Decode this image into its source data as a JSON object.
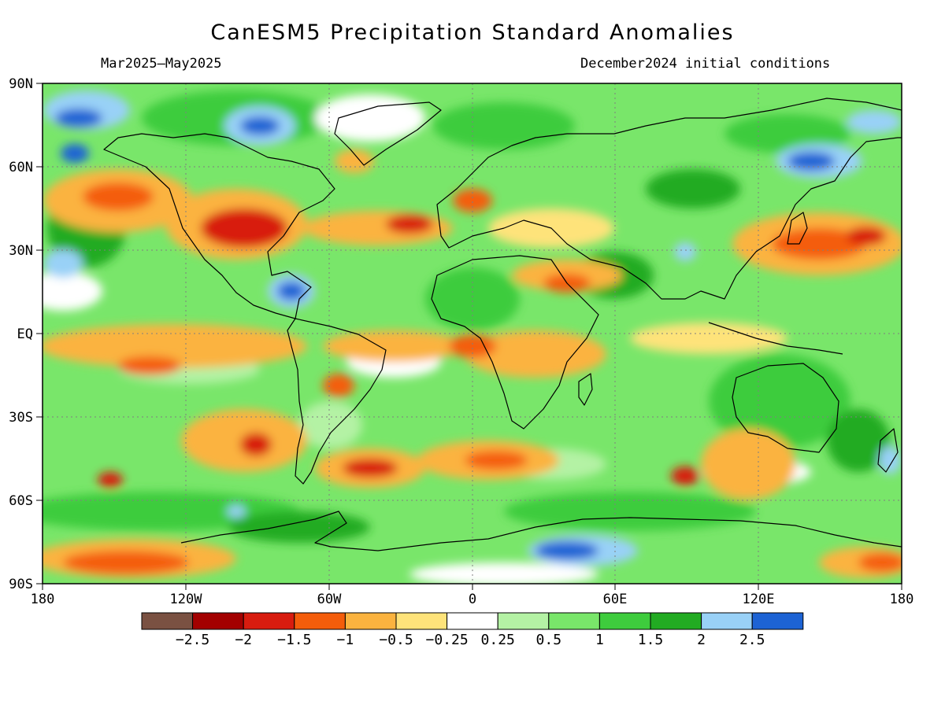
{
  "title": "CanESM5 Precipitation Standard Anomalies",
  "subtitle_left": "Mar2025–May2025",
  "subtitle_right": "December2024 initial conditions",
  "lat_labels": [
    "90N",
    "60N",
    "30N",
    "EQ",
    "30S",
    "60S",
    "90S"
  ],
  "lon_labels": [
    "180",
    "120W",
    "60W",
    "0",
    "60E",
    "120E",
    "180"
  ],
  "colorbar": {
    "colors": [
      "#7a5142",
      "#a30000",
      "#d81c0f",
      "#f45d0b",
      "#fbb33f",
      "#fee37a",
      "#ffffff",
      "#b4f2a4",
      "#79e66a",
      "#3ecc3d",
      "#22ab22",
      "#99d1f7",
      "#1d63d4"
    ],
    "labels": [
      "−2.5",
      "−2",
      "−1.5",
      "−1",
      "−0.5",
      "−0.25",
      "0.25",
      "0.5",
      "1",
      "1.5",
      "2",
      "2.5"
    ]
  },
  "palette": {
    "ocean_base": "#79e66a",
    "coast": "#000000"
  }
}
